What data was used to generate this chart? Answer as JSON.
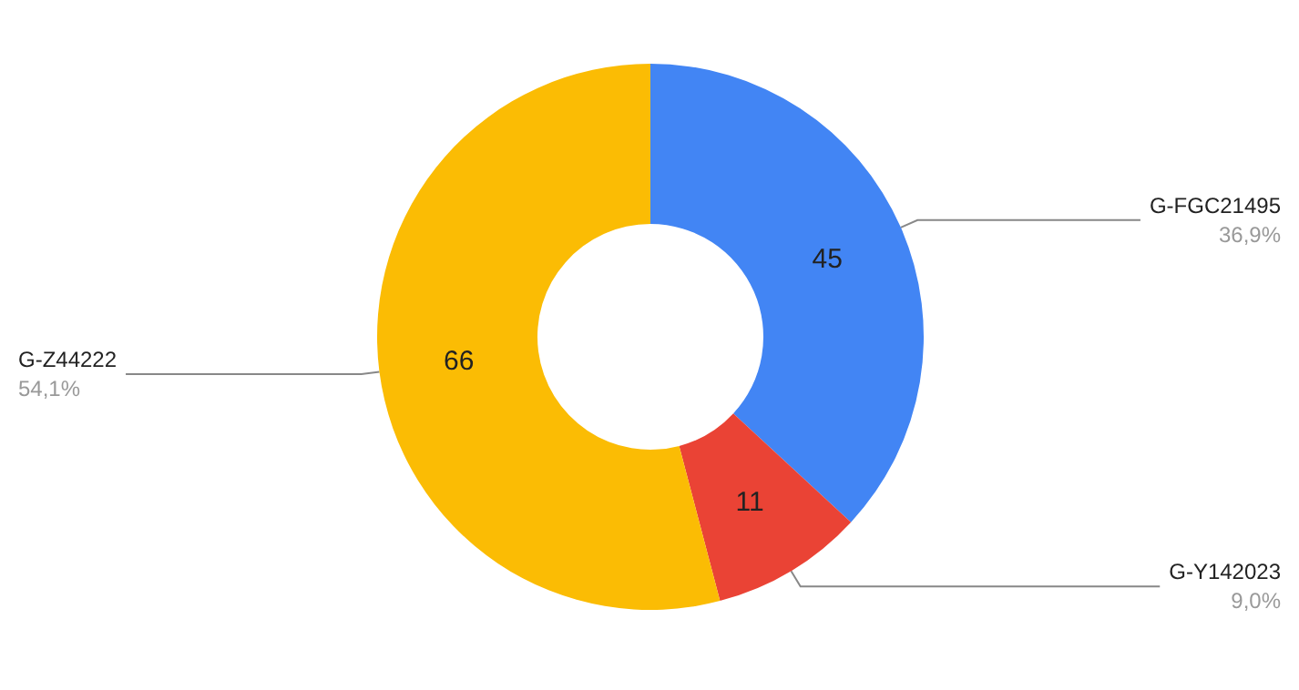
{
  "chart_data": {
    "type": "donut",
    "categories": [
      "G-FGC21495",
      "G-Y142023",
      "G-Z44222"
    ],
    "values": [
      45,
      11,
      66
    ],
    "colors": [
      "#4285f4",
      "#ea4335",
      "#fbbc04"
    ],
    "annotations": [
      "36,9%",
      "9,0%",
      "54,1%"
    ],
    "data_labels": true,
    "legend": false
  }
}
